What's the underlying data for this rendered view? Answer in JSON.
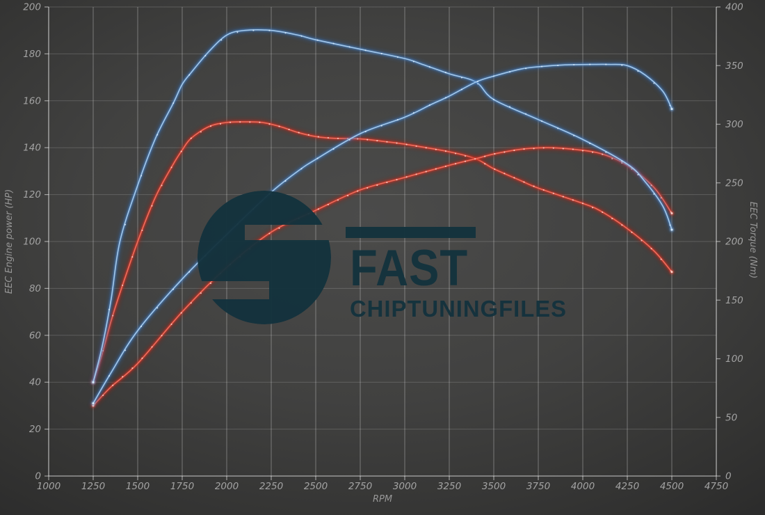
{
  "watermark": {
    "brand": "FAST",
    "subtitle": "CHIPTUNINGFILES",
    "color": "#13323d",
    "icon": "s-circle-logo"
  },
  "colors": {
    "background_center": "#4b4b4a",
    "background_edge": "#292929",
    "grid": "#8f8f8f",
    "tick_text": "#a3a3a3",
    "axis_title_text": "#979797",
    "tuned_curve": "#4d86c8",
    "original_curve": "#d93426"
  },
  "palette": {
    "tuned": {
      "glow": "#2a63ab",
      "mid": "#4d86c8",
      "core": "#a9cdef",
      "dot": "#ddeefc"
    },
    "original": {
      "glow": "#a81b10",
      "mid": "#d93426",
      "core": "#f2705f",
      "dot": "#ffd9d2"
    }
  },
  "chart_data": {
    "type": "line",
    "title": "",
    "grid": true,
    "legend_position": "none",
    "x_axis": {
      "label": "RPM",
      "min": 1000,
      "max": 4750,
      "tick_step": 250,
      "ticks": [
        1000,
        1250,
        1500,
        1750,
        2000,
        2250,
        2500,
        2750,
        3000,
        3250,
        3500,
        3750,
        4000,
        4250,
        4500,
        4750
      ]
    },
    "y_axis_left": {
      "label": "EEC Engine power (HP)",
      "min": 0,
      "max": 200,
      "tick_step": 20,
      "ticks": [
        0,
        20,
        40,
        60,
        80,
        100,
        120,
        140,
        160,
        180,
        200
      ]
    },
    "y_axis_right": {
      "label": "EEC Torque (Nm)",
      "min": 0,
      "max": 400,
      "tick_step": 50,
      "ticks": [
        0,
        50,
        100,
        150,
        200,
        250,
        300,
        350,
        400
      ]
    },
    "series": [
      {
        "name": "torque_original",
        "style": "original",
        "axis": "right",
        "unit": "Nm",
        "dot_step": 55,
        "x": [
          1250,
          1300,
          1350,
          1400,
          1500,
          1600,
          1700,
          1750,
          1800,
          1900,
          2000,
          2100,
          2200,
          2300,
          2400,
          2500,
          2600,
          2750,
          2900,
          3000,
          3250,
          3400,
          3500,
          3650,
          3750,
          4000,
          4100,
          4250,
          4400,
          4500
        ],
        "y": [
          80,
          104,
          132,
          156,
          200,
          238,
          266,
          278,
          288,
          298,
          301.5,
          302,
          301.5,
          298,
          293,
          289.5,
          288,
          287.5,
          285,
          283,
          276.5,
          270.5,
          262,
          252,
          245.5,
          232.5,
          226,
          211,
          192,
          174
        ]
      },
      {
        "name": "power_original",
        "style": "original",
        "axis": "left",
        "unit": "HP",
        "dot_step": 55,
        "x": [
          1250,
          1350,
          1500,
          1750,
          2000,
          2250,
          2500,
          2750,
          3000,
          3250,
          3400,
          3500,
          3650,
          3800,
          3950,
          4100,
          4250,
          4400,
          4500
        ],
        "y": [
          30,
          38,
          48,
          70,
          89,
          104,
          113.3,
          122,
          127.3,
          132.5,
          135.3,
          137.3,
          139.3,
          140,
          139.3,
          137.5,
          132.5,
          123,
          112
        ]
      },
      {
        "name": "torque_tuned",
        "style": "tuned",
        "axis": "right",
        "unit": "Nm",
        "dot_step": 90,
        "x": [
          1250,
          1300,
          1350,
          1400,
          1500,
          1600,
          1700,
          1750,
          1800,
          1900,
          2000,
          2100,
          2250,
          2400,
          2500,
          2750,
          3000,
          3100,
          3250,
          3400,
          3500,
          3750,
          4000,
          4250,
          4350,
          4450,
          4500
        ],
        "y": [
          80,
          110,
          150,
          200,
          248,
          288,
          318,
          334,
          344,
          362,
          376,
          380,
          380,
          376,
          372,
          364,
          356,
          351,
          343,
          336,
          321,
          304,
          287,
          266,
          251,
          230,
          210
        ]
      },
      {
        "name": "power_tuned",
        "style": "tuned",
        "axis": "left",
        "unit": "HP",
        "dot_step": 90,
        "x": [
          1250,
          1350,
          1500,
          1750,
          2000,
          2250,
          2400,
          2500,
          2750,
          3000,
          3150,
          3250,
          3400,
          3500,
          3650,
          3750,
          3900,
          4050,
          4150,
          4250,
          4350,
          4450,
          4500
        ],
        "y": [
          31,
          44,
          62,
          84,
          103,
          121,
          130,
          135,
          146,
          153,
          158.5,
          162,
          168,
          170.5,
          173.5,
          174.5,
          175.3,
          175.5,
          175.5,
          175,
          171,
          164,
          156.5
        ]
      }
    ]
  }
}
